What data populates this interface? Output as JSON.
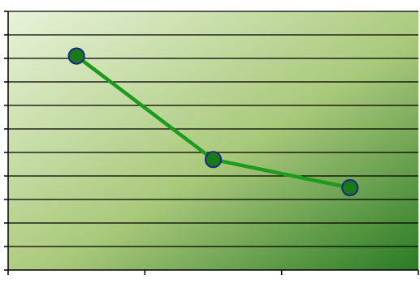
{
  "chart_data": {
    "type": "line",
    "title": "",
    "xlabel": "",
    "ylabel": "",
    "categories": [
      "",
      "",
      ""
    ],
    "values": [
      91,
      47,
      35
    ],
    "ylim": [
      0,
      110
    ],
    "grid": true,
    "legend": "none",
    "colors": {
      "line": "#1e9a1e",
      "marker_fill": "#1a7a1a",
      "marker_stroke": "#1b2f7a",
      "bg_light": "#e8f3d9",
      "bg_mid": "#a9c97a",
      "bg_dark": "#2a7a25",
      "grid": "#000000",
      "axis": "#000000"
    }
  }
}
